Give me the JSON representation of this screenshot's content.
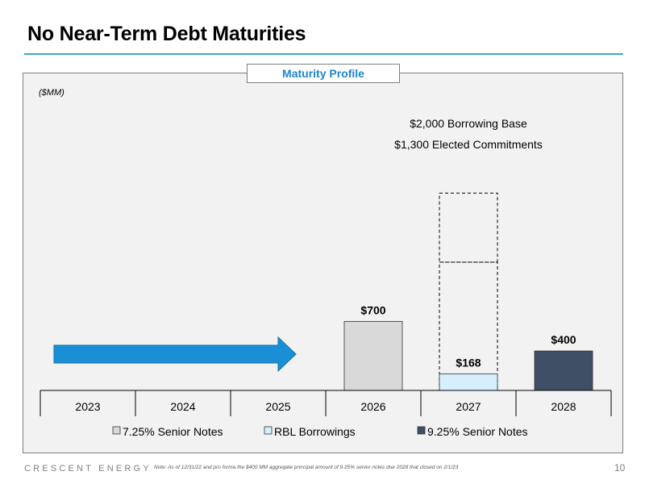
{
  "slide": {
    "title": "No Near-Term Debt Maturities",
    "panel_header": "Maturity Profile",
    "brand": "CRESCENT ENERGY",
    "footer_note": "Note: As of 12/31/22 and pro forma the $400 MM aggregate principal amount of 9.25% senior notes due 2028 that closed on 2/1/23",
    "page_number": "10"
  },
  "colors": {
    "accent": "#3fa7c3",
    "header_text": "#1a84ce",
    "senior_725": "#d9d9d9",
    "rbl": "#d6efff",
    "senior_925": "#3f4f66",
    "arrow": "#1a8fd6",
    "panel_bg": "#f2f2f2"
  },
  "chart_data": {
    "type": "bar",
    "unit_label": "($MM)",
    "categories": [
      "2023",
      "2024",
      "2025",
      "2026",
      "2027",
      "2028"
    ],
    "series": [
      {
        "name": "7.25% Senior Notes",
        "values": [
          0,
          0,
          0,
          700,
          0,
          0
        ],
        "color_key": "senior_725"
      },
      {
        "name": "RBL Borrowings",
        "values": [
          0,
          0,
          0,
          0,
          168,
          0
        ],
        "color_key": "rbl"
      },
      {
        "name": "9.25% Senior Notes",
        "values": [
          0,
          0,
          0,
          0,
          0,
          400
        ],
        "color_key": "senior_925"
      }
    ],
    "data_labels": [
      {
        "category": "2026",
        "text": "$700",
        "value": 700
      },
      {
        "category": "2027",
        "text": "$168",
        "value": 168
      },
      {
        "category": "2028",
        "text": "$400",
        "value": 400
      }
    ],
    "capacity": {
      "category": "2027",
      "borrowing_base": 2000,
      "elected_commitments": 1300,
      "labels": [
        "$2,000 Borrowing Base",
        "$1,300 Elected Commitments"
      ]
    },
    "arrow": {
      "from_category": "2023",
      "to_category": "2025"
    },
    "ylim": [
      0,
      2000
    ],
    "legend_position": "bottom"
  }
}
